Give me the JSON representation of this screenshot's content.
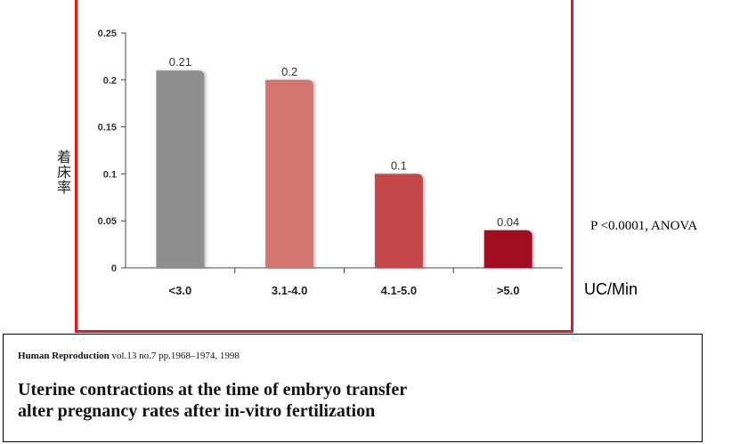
{
  "chart_data": {
    "type": "bar",
    "categories": [
      "<3.0",
      "3.1-4.0",
      "4.1-5.0",
      ">5.0"
    ],
    "values": [
      0.21,
      0.2,
      0.1,
      0.04
    ],
    "value_labels": [
      "0.21",
      "0.2",
      "0.1",
      "0.04"
    ],
    "bar_colors": [
      "#8e8e8e",
      "#d4766f",
      "#c4474a",
      "#a30e24"
    ],
    "ylabel": "着床率",
    "xlabel": "UC/Min",
    "ylim": [
      0,
      0.25
    ],
    "yticks": [
      0,
      0.05,
      0.1,
      0.15,
      0.2,
      0.25
    ],
    "ytick_labels": [
      "0",
      "0.05",
      "0.1",
      "0.15",
      "0.2",
      "0.25"
    ],
    "grid": false,
    "annotation": "P <0.0001, ANOVA"
  },
  "frame_color": "#e8151b",
  "citation": {
    "journal_name": "Human Reproduction",
    "journal_details": " vol.13 no.7 pp.1968–1974, 1998",
    "title_line1": "Uterine contractions at the time of embryo transfer",
    "title_line2": "alter pregnancy rates after in-vitro fertilization"
  }
}
